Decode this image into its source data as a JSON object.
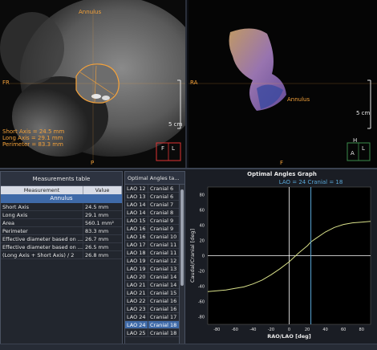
{
  "ct_view": {
    "top_label": "Annulus",
    "left_label": "FR",
    "bottom_label": "P",
    "scale_label": "5 cm",
    "measurements": [
      "Short Axis = 24.5 mm",
      "Long Axis = 29.1 mm",
      "Perimeter = 83.3 mm"
    ],
    "cube_letters": [
      "F",
      "L"
    ]
  },
  "volume_view": {
    "left_label": "RA",
    "bottom_label": "F",
    "scale_label": "5 cm",
    "annulus_label": "Annulus",
    "cube_letters": [
      "H",
      "A",
      "L"
    ]
  },
  "measurements_table": {
    "title": "Measurements table",
    "col_measurement": "Measurement",
    "col_value": "Value",
    "group": "Annulus",
    "rows": [
      {
        "name": "Short Axis",
        "value": "24.5 mm"
      },
      {
        "name": "Long Axis",
        "value": "29.1 mm"
      },
      {
        "name": "Area",
        "value": "560.1 mm²"
      },
      {
        "name": "Perimeter",
        "value": "83.3 mm"
      },
      {
        "name": "Effective diameter based on ...",
        "value": "26.7 mm"
      },
      {
        "name": "Effective diameter based on ...",
        "value": "26.5 mm"
      },
      {
        "name": "(Long Axis + Short Axis) / 2",
        "value": "26.8 mm"
      }
    ]
  },
  "angles_table": {
    "title": "Optimal Angles ta...",
    "rows": [
      {
        "lao": "LAO 12",
        "cranial": "Cranial 6"
      },
      {
        "lao": "LAO 13",
        "cranial": "Cranial 6"
      },
      {
        "lao": "LAO 14",
        "cranial": "Cranial 7"
      },
      {
        "lao": "LAO 14",
        "cranial": "Cranial 8"
      },
      {
        "lao": "LAO 15",
        "cranial": "Cranial 9"
      },
      {
        "lao": "LAO 16",
        "cranial": "Cranial 9"
      },
      {
        "lao": "LAO 16",
        "cranial": "Cranial 10"
      },
      {
        "lao": "LAO 17",
        "cranial": "Cranial 11"
      },
      {
        "lao": "LAO 18",
        "cranial": "Cranial 11"
      },
      {
        "lao": "LAO 19",
        "cranial": "Cranial 12"
      },
      {
        "lao": "LAO 19",
        "cranial": "Cranial 13"
      },
      {
        "lao": "LAO 20",
        "cranial": "Cranial 14"
      },
      {
        "lao": "LAO 21",
        "cranial": "Cranial 14"
      },
      {
        "lao": "LAO 21",
        "cranial": "Cranial 15"
      },
      {
        "lao": "LAO 22",
        "cranial": "Cranial 16"
      },
      {
        "lao": "LAO 23",
        "cranial": "Cranial 16"
      },
      {
        "lao": "LAO 24",
        "cranial": "Cranial 17"
      },
      {
        "lao": "LAO 24",
        "cranial": "Cranial 18"
      },
      {
        "lao": "LAO 25",
        "cranial": "Cranial 18"
      }
    ],
    "selected_index": 17
  },
  "chart_data": {
    "type": "line",
    "title": "Optimal Angles Graph",
    "annotation": "LAO = 24 Cranial = 18",
    "xlabel": "RAO/LAO [deg]",
    "ylabel": "Caudal/Cranial [deg]",
    "xlim": [
      -90,
      90
    ],
    "ylim": [
      -90,
      90
    ],
    "xticks": [
      -80,
      -60,
      -40,
      -20,
      0,
      20,
      40,
      60,
      80
    ],
    "yticks": [
      -80,
      -60,
      -40,
      -20,
      0,
      20,
      40,
      60,
      80
    ],
    "series": [
      {
        "x": [
          -90,
          -80,
          -70,
          -60,
          -50,
          -40,
          -30,
          -20,
          -10,
          0,
          10,
          20,
          24,
          30,
          40,
          50,
          60,
          70,
          80,
          90
        ],
        "y": [
          -47,
          -46,
          -45,
          -43,
          -41,
          -37,
          -32,
          -25,
          -17,
          -8,
          3,
          13,
          18,
          23,
          31,
          37,
          41,
          43,
          44,
          45
        ]
      }
    ],
    "marker_x": 24,
    "colors": {
      "curve": "#d8e08a",
      "marker": "#5aa8d8",
      "axis": "#ffffff"
    }
  }
}
